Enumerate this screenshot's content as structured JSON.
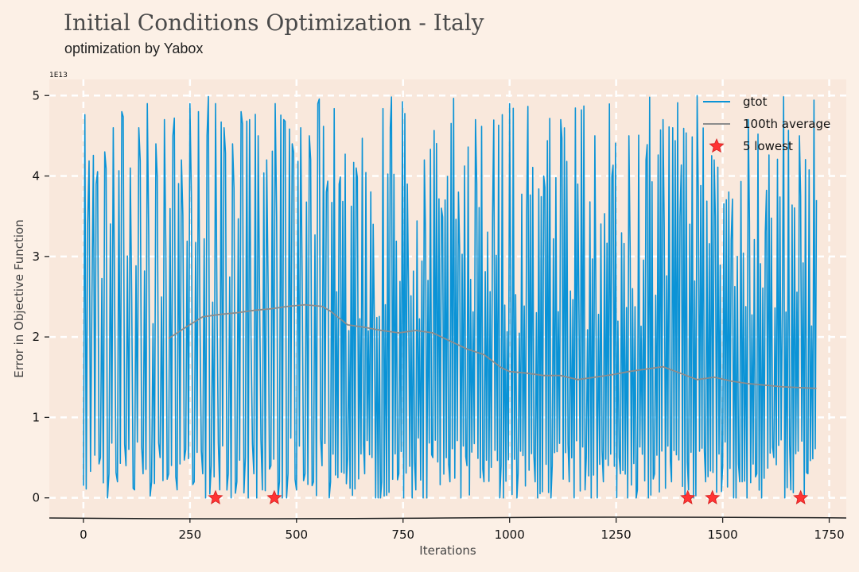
{
  "header": {
    "title": "Initial Conditions Optimization - Italy",
    "subtitle": "optimization by Yabox"
  },
  "chart_data": {
    "type": "line",
    "title": "Initial Conditions Optimization - Italy",
    "subtitle": "optimization by Yabox",
    "xlabel": "Iterations",
    "ylabel": "Error in Objective Function",
    "y_offset_label": "1E13",
    "xlim": [
      -80,
      1790
    ],
    "ylim": [
      -0.25,
      5.2
    ],
    "x_ticks": [
      0,
      250,
      500,
      750,
      1000,
      1250,
      1500,
      1750
    ],
    "y_ticks": [
      0,
      1,
      2,
      3,
      4,
      5
    ],
    "grid": true,
    "legend_position": "top-right",
    "colors": {
      "background": "#fcf0e6",
      "plot_area": "#f9e8dc",
      "gtot": "#0b93d6",
      "average": "#8c8c8c",
      "lowest": "#ff3333",
      "grid": "#ffffff"
    },
    "series": [
      {
        "name": "gtot",
        "style": "line",
        "color": "#0b93d6",
        "n_points": 1730,
        "value_range": [
          0,
          5.0
        ],
        "description_values": "oscillating between ~0 and ~5 (x1E13), density sampled below",
        "sample_x": [
          0,
          10,
          20,
          30,
          40,
          50,
          60,
          70,
          80,
          90,
          100,
          110,
          120,
          130,
          140,
          150,
          160,
          170,
          180,
          190,
          200,
          210,
          220,
          230,
          240,
          250,
          260,
          270,
          280,
          290,
          300,
          310,
          320,
          330,
          340,
          350,
          360,
          370,
          380,
          390,
          400,
          410,
          420,
          430,
          440,
          450,
          460,
          470,
          480,
          490,
          500,
          510,
          520,
          530,
          540,
          550,
          560,
          570,
          580,
          600,
          620,
          640,
          660,
          680,
          700,
          720,
          740,
          760,
          780,
          800,
          820,
          840,
          860,
          880,
          900,
          920,
          940,
          960,
          980,
          1000,
          1020,
          1040,
          1060,
          1080,
          1100,
          1120,
          1140,
          1160,
          1180,
          1200,
          1220,
          1240,
          1260,
          1280,
          1300,
          1320,
          1340,
          1360,
          1380,
          1400,
          1420,
          1440,
          1460,
          1480,
          1500,
          1520,
          1540,
          1560,
          1580,
          1600,
          1620,
          1640,
          1660,
          1680,
          1700,
          1720
        ],
        "sample_y": [
          0.15,
          3.4,
          2.5,
          3.9,
          0.5,
          4.3,
          0.3,
          4.6,
          0.2,
          4.8,
          0.4,
          4.1,
          0.1,
          4.6,
          0.3,
          4.9,
          0.2,
          4.4,
          0.5,
          4.7,
          0.3,
          4.5,
          0.1,
          4.2,
          0.6,
          4.9,
          0.2,
          4.8,
          0.3,
          4.5,
          0.4,
          4.9,
          0.1,
          4.6,
          0.3,
          4.4,
          0.2,
          4.8,
          0.5,
          4.7,
          0.3,
          4.5,
          0.1,
          4.2,
          0.4,
          4.9,
          0.2,
          4.7,
          0.3,
          4.4,
          0.1,
          4.6,
          0.3,
          4.5,
          0.2,
          4.9,
          0.4,
          3.8,
          0.2,
          3.9,
          0.5,
          4.1,
          0.3,
          3.4,
          0.2,
          4.6,
          0.3,
          3.9,
          0.1,
          4.2,
          0.5,
          3.6,
          0.2,
          3.8,
          0.4,
          4.7,
          0.2,
          3.5,
          0.4,
          4.9,
          0.3,
          3.5,
          0.2,
          4.0,
          0.4,
          4.7,
          0.2,
          3.9,
          0.5,
          4.5,
          0.2,
          4.0,
          0.3,
          4.5,
          0.1,
          4.2,
          0.3,
          4.7,
          0.2,
          3.5,
          0.1,
          5.0,
          0.2,
          4.2,
          0.4,
          3.2,
          0.2,
          4.7,
          0.3,
          3.3,
          0.5,
          2.3,
          0.1,
          4.5,
          0.3,
          3.7
        ]
      },
      {
        "name": "100th average",
        "style": "line",
        "color": "#8c8c8c",
        "x": [
          200,
          240,
          280,
          320,
          360,
          400,
          440,
          480,
          520,
          560,
          580,
          620,
          660,
          700,
          740,
          780,
          820,
          860,
          900,
          940,
          980,
          1000,
          1040,
          1080,
          1120,
          1160,
          1200,
          1240,
          1280,
          1320,
          1360,
          1400,
          1440,
          1480,
          1520,
          1560,
          1600,
          1640,
          1680,
          1720
        ],
        "y": [
          1.98,
          2.12,
          2.25,
          2.28,
          2.3,
          2.33,
          2.35,
          2.38,
          2.4,
          2.38,
          2.32,
          2.15,
          2.12,
          2.08,
          2.05,
          2.08,
          2.05,
          1.95,
          1.85,
          1.78,
          1.62,
          1.57,
          1.55,
          1.52,
          1.52,
          1.47,
          1.5,
          1.53,
          1.57,
          1.6,
          1.63,
          1.55,
          1.47,
          1.5,
          1.45,
          1.42,
          1.4,
          1.38,
          1.37,
          1.36
        ]
      },
      {
        "name": "5 lowest",
        "style": "marker-star",
        "color": "#ff3333",
        "x": [
          310,
          448,
          1418,
          1476,
          1683
        ],
        "y": [
          0.0,
          0.0,
          0.0,
          0.0,
          0.0
        ]
      }
    ]
  }
}
